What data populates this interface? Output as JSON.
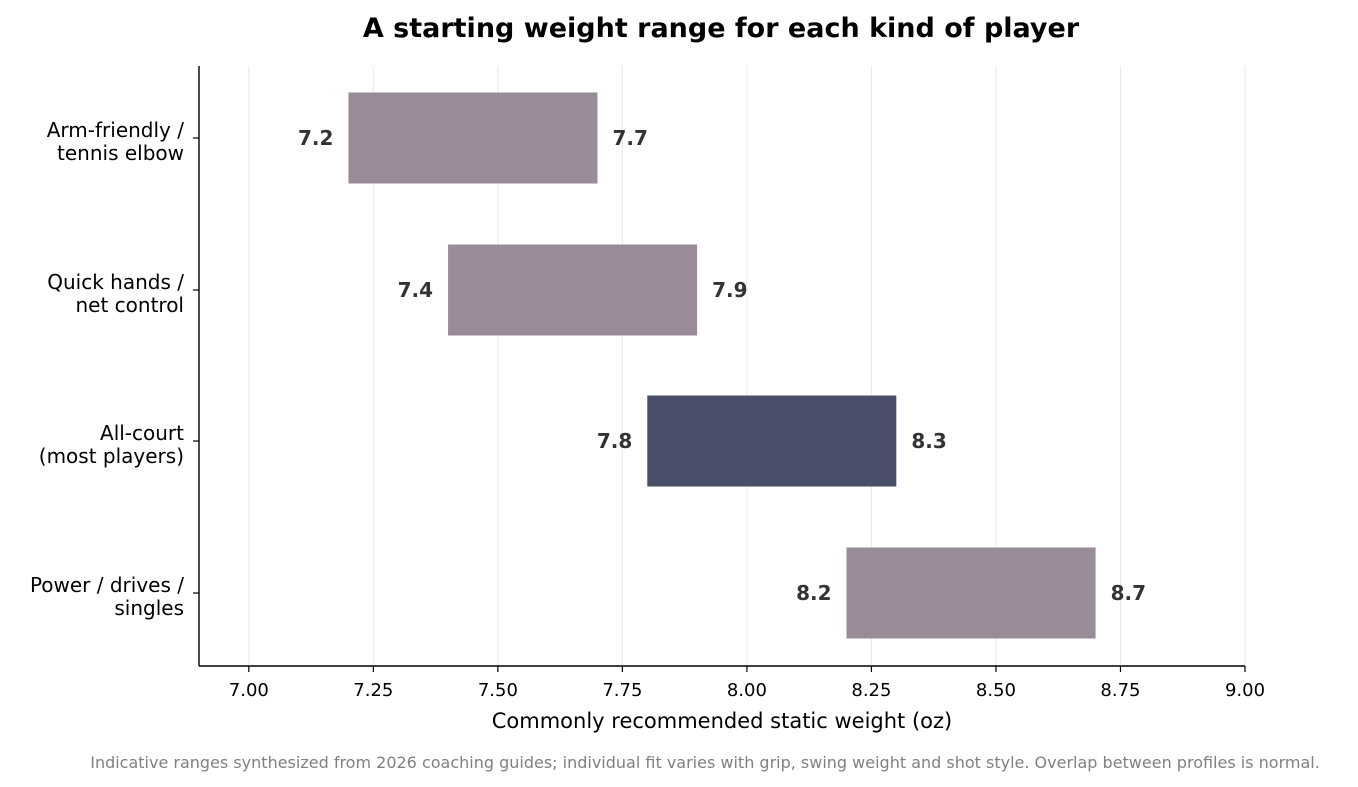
{
  "chart_data": {
    "type": "bar",
    "orientation": "horizontal-range",
    "title": "A starting weight range for each kind of player",
    "xlabel": "Commonly recommended static weight (oz)",
    "ylabel": "",
    "xlim": [
      6.9,
      9.0
    ],
    "x_ticks": [
      "7.00",
      "7.25",
      "7.50",
      "7.75",
      "8.00",
      "8.25",
      "8.50",
      "8.75",
      "9.00"
    ],
    "x_tick_values": [
      7.0,
      7.25,
      7.5,
      7.75,
      8.0,
      8.25,
      8.5,
      8.75,
      9.0
    ],
    "grid": "vertical",
    "legend": "none",
    "categories": [
      [
        "Arm-friendly /",
        "tennis elbow"
      ],
      [
        "Quick hands /",
        "net control"
      ],
      [
        "All-court",
        "(most players)"
      ],
      [
        "Power / drives /",
        "singles"
      ]
    ],
    "ranges": [
      {
        "low": 7.2,
        "high": 7.7,
        "low_label": "7.2",
        "high_label": "7.7",
        "highlight": false
      },
      {
        "low": 7.4,
        "high": 7.9,
        "low_label": "7.4",
        "high_label": "7.9",
        "highlight": false
      },
      {
        "low": 7.8,
        "high": 8.3,
        "low_label": "7.8",
        "high_label": "8.3",
        "highlight": true
      },
      {
        "low": 8.2,
        "high": 8.7,
        "low_label": "8.2",
        "high_label": "8.7",
        "highlight": false
      }
    ],
    "colors": {
      "default_bar": "#9a8b98",
      "highlight_bar": "#4a4f69",
      "grid": "#e8e8e8",
      "axis": "#000000",
      "value_label": "#333333"
    },
    "footnote": "Indicative ranges synthesized from 2026 coaching guides; individual fit varies with grip, swing weight and shot style. Overlap between profiles is normal."
  }
}
